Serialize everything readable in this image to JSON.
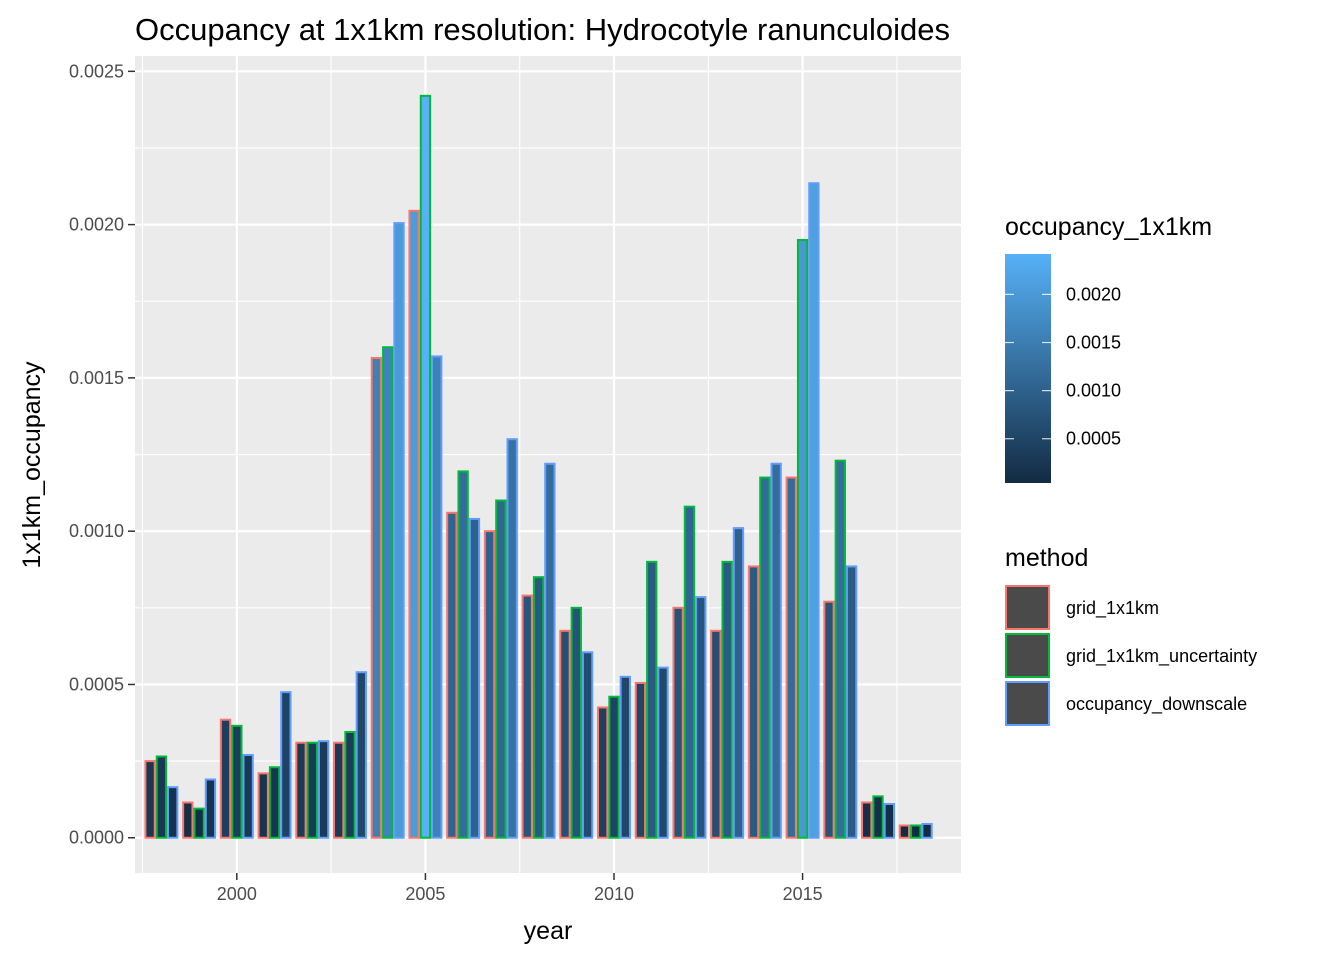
{
  "chart_data": {
    "type": "bar",
    "title": "Occupancy at 1x1km resolution: Hydrocotyle ranunculoides",
    "xlabel": "year",
    "ylabel": "1x1km_occupancy",
    "xlim": [
      1997.3,
      2019.2
    ],
    "ylim": [
      -0.000115,
      0.00255
    ],
    "x_ticks": [
      2000,
      2005,
      2010,
      2015
    ],
    "y_ticks": [
      "0.0000",
      "0.0005",
      "0.0010",
      "0.0015",
      "0.0020",
      "0.0025"
    ],
    "grid": true,
    "legend_placement": "right",
    "fill_scale": {
      "name": "occupancy_1x1km",
      "low_color": "#132B43",
      "high_color": "#56B1F7",
      "range": [
        4e-05,
        0.00242
      ],
      "ticks": [
        "0.0005",
        "0.0010",
        "0.0015",
        "0.0020"
      ]
    },
    "categories": [
      1998,
      1999,
      2000,
      2001,
      2002,
      2003,
      2004,
      2005,
      2006,
      2007,
      2008,
      2009,
      2010,
      2011,
      2012,
      2013,
      2014,
      2015,
      2016,
      2017,
      2018
    ],
    "series": [
      {
        "name": "grid_1x1km",
        "color": "#F8766D",
        "values": [
          0.00025,
          0.000115,
          0.000385,
          0.00021,
          0.00031,
          0.00031,
          0.001565,
          0.002045,
          0.00106,
          0.001,
          0.00079,
          0.000675,
          0.000425,
          0.000505,
          0.00075,
          0.000675,
          0.000885,
          0.001175,
          0.00077,
          0.000115,
          4e-05
        ]
      },
      {
        "name": "grid_1x1km_uncertainty",
        "color": "#00BA38",
        "values": [
          0.000265,
          9.5e-05,
          0.000365,
          0.00023,
          0.00031,
          0.000345,
          0.0016,
          0.00242,
          0.001195,
          0.0011,
          0.00085,
          0.00075,
          0.00046,
          0.0009,
          0.00108,
          0.0009,
          0.001175,
          0.00195,
          0.00123,
          0.000135,
          4e-05
        ]
      },
      {
        "name": "occupancy_downscale",
        "color": "#619CFF",
        "values": [
          0.000165,
          0.00019,
          0.00027,
          0.000475,
          0.000315,
          0.00054,
          0.002005,
          0.00157,
          0.00104,
          0.0013,
          0.00122,
          0.000605,
          0.000525,
          0.000555,
          0.000785,
          0.00101,
          0.00122,
          0.002135,
          0.000885,
          0.00011,
          4.5e-05
        ]
      }
    ],
    "legend": {
      "title": "method",
      "entries": [
        "grid_1x1km",
        "grid_1x1km_uncertainty",
        "occupancy_downscale"
      ]
    }
  }
}
